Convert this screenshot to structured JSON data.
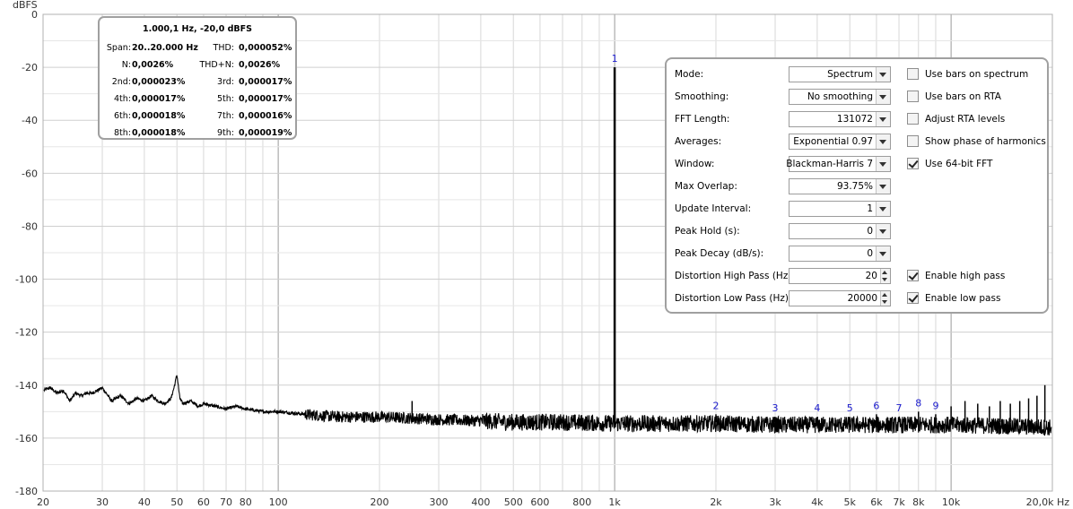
{
  "chart_data": {
    "type": "line",
    "ylabel": "dBFS",
    "xscale": "log",
    "xlim": [
      20,
      20000
    ],
    "ylim": [
      -180,
      0
    ],
    "x_ticks": [
      {
        "value": 20,
        "label": "20"
      },
      {
        "value": 30,
        "label": "30"
      },
      {
        "value": 40,
        "label": "40"
      },
      {
        "value": 50,
        "label": "50"
      },
      {
        "value": 60,
        "label": "60"
      },
      {
        "value": 70,
        "label": "70"
      },
      {
        "value": 80,
        "label": "80"
      },
      {
        "value": 100,
        "label": "100"
      },
      {
        "value": 200,
        "label": "200"
      },
      {
        "value": 300,
        "label": "300"
      },
      {
        "value": 400,
        "label": "400"
      },
      {
        "value": 500,
        "label": "500"
      },
      {
        "value": 600,
        "label": "600"
      },
      {
        "value": 800,
        "label": "800"
      },
      {
        "value": 1000,
        "label": "1k"
      },
      {
        "value": 2000,
        "label": "2k"
      },
      {
        "value": 3000,
        "label": "3k"
      },
      {
        "value": 4000,
        "label": "4k"
      },
      {
        "value": 5000,
        "label": "5k"
      },
      {
        "value": 6000,
        "label": "6k"
      },
      {
        "value": 7000,
        "label": "7k"
      },
      {
        "value": 8000,
        "label": "8k"
      },
      {
        "value": 10000,
        "label": "10k"
      },
      {
        "value": 20000,
        "label": "20,0k Hz"
      }
    ],
    "y_ticks": [
      0,
      -20,
      -40,
      -60,
      -80,
      -100,
      -120,
      -140,
      -160,
      -180
    ],
    "grid": true,
    "series": [
      {
        "x": [
          20,
          21,
          22,
          23,
          24,
          25,
          26,
          27,
          28,
          29,
          30,
          32,
          34,
          36,
          38,
          40,
          42,
          44,
          46,
          48,
          49,
          50,
          51,
          52,
          55,
          58,
          60,
          65,
          70,
          75,
          80,
          90,
          100,
          120,
          150,
          200,
          250,
          300,
          400,
          500,
          700,
          1000,
          2000,
          3000,
          5000,
          7000,
          10000,
          15000,
          20000
        ],
        "values": [
          -142,
          -141,
          -143,
          -142,
          -146,
          -143,
          -144,
          -143,
          -143,
          -142,
          -141,
          -146,
          -144,
          -147,
          -145,
          -146,
          -144,
          -146,
          -147,
          -145,
          -141,
          -136,
          -145,
          -147,
          -146,
          -148,
          -147,
          -148,
          -149,
          -148,
          -149,
          -150,
          -150,
          -151,
          -152,
          -152,
          -152.5,
          -153,
          -153.5,
          -154,
          -154,
          -154.5,
          -154.5,
          -155,
          -155,
          -155,
          -155,
          -155.5,
          -156
        ]
      }
    ],
    "peaks": [
      {
        "x": 1000,
        "y": -20,
        "label": "1"
      },
      {
        "x": 250,
        "y": -146,
        "label": ""
      },
      {
        "x": 2000,
        "y": -151,
        "label": "2"
      },
      {
        "x": 3000,
        "y": -152,
        "label": "3"
      },
      {
        "x": 4000,
        "y": -152,
        "label": "4"
      },
      {
        "x": 5000,
        "y": -152,
        "label": "5"
      },
      {
        "x": 6000,
        "y": -151,
        "label": "6"
      },
      {
        "x": 7000,
        "y": -152,
        "label": "7"
      },
      {
        "x": 8000,
        "y": -150,
        "label": "8"
      },
      {
        "x": 9000,
        "y": -151,
        "label": "9"
      },
      {
        "x": 10000,
        "y": -148,
        "label": ""
      },
      {
        "x": 11000,
        "y": -146,
        "label": ""
      },
      {
        "x": 12000,
        "y": -147,
        "label": ""
      },
      {
        "x": 13000,
        "y": -148,
        "label": ""
      },
      {
        "x": 14000,
        "y": -146,
        "label": ""
      },
      {
        "x": 15000,
        "y": -147,
        "label": ""
      },
      {
        "x": 16000,
        "y": -146,
        "label": ""
      },
      {
        "x": 17000,
        "y": -145,
        "label": ""
      },
      {
        "x": 18000,
        "y": -144,
        "label": ""
      },
      {
        "x": 19000,
        "y": -140,
        "label": ""
      }
    ]
  },
  "distortion": {
    "title": "1.000,1 Hz, -20,0 dBFS",
    "rows": [
      {
        "l1": "Span:",
        "v1": "20..20.000 Hz",
        "l2": "THD:",
        "v2": "0,000052%"
      },
      {
        "l1": "N:",
        "v1": "0,0026%",
        "l2": "THD+N:",
        "v2": "0,0026%"
      },
      {
        "l1": "2nd:",
        "v1": "0,000023%",
        "l2": "3rd:",
        "v2": "0,000017%"
      },
      {
        "l1": "4th:",
        "v1": "0,000017%",
        "l2": "5th:",
        "v2": "0,000017%"
      },
      {
        "l1": "6th:",
        "v1": "0,000018%",
        "l2": "7th:",
        "v2": "0,000016%"
      },
      {
        "l1": "8th:",
        "v1": "0,000018%",
        "l2": "9th:",
        "v2": "0,000019%"
      }
    ]
  },
  "settings": {
    "mode": {
      "label": "Mode:",
      "value": "Spectrum"
    },
    "smoothing": {
      "label": "Smoothing:",
      "value": "No  smoothing"
    },
    "fft_length": {
      "label": "FFT Length:",
      "value": "131072"
    },
    "averages": {
      "label": "Averages:",
      "value": "Exponential 0.97"
    },
    "window": {
      "label": "Window:",
      "value": "Blackman-Harris 7"
    },
    "max_overlap": {
      "label": "Max Overlap:",
      "value": "93.75%"
    },
    "update_interval": {
      "label": "Update Interval:",
      "value": "1"
    },
    "peak_hold": {
      "label": "Peak Hold (s):",
      "value": "0"
    },
    "peak_decay": {
      "label": "Peak Decay (dB/s):",
      "value": "0"
    },
    "dist_high_pass": {
      "label": "Distortion High Pass (Hz):",
      "value": "20"
    },
    "dist_low_pass": {
      "label": "Distortion Low Pass (Hz):",
      "value": "20000"
    },
    "checkboxes": [
      {
        "label": "Use bars on spectrum",
        "checked": false
      },
      {
        "label": "Use bars on RTA",
        "checked": false
      },
      {
        "label": "Adjust RTA levels",
        "checked": false
      },
      {
        "label": "Show phase of harmonics",
        "checked": false
      },
      {
        "label": "Use 64-bit FFT",
        "checked": true
      },
      {
        "label": "Enable high pass",
        "checked": true
      },
      {
        "label": "Enable low pass",
        "checked": true
      }
    ]
  }
}
